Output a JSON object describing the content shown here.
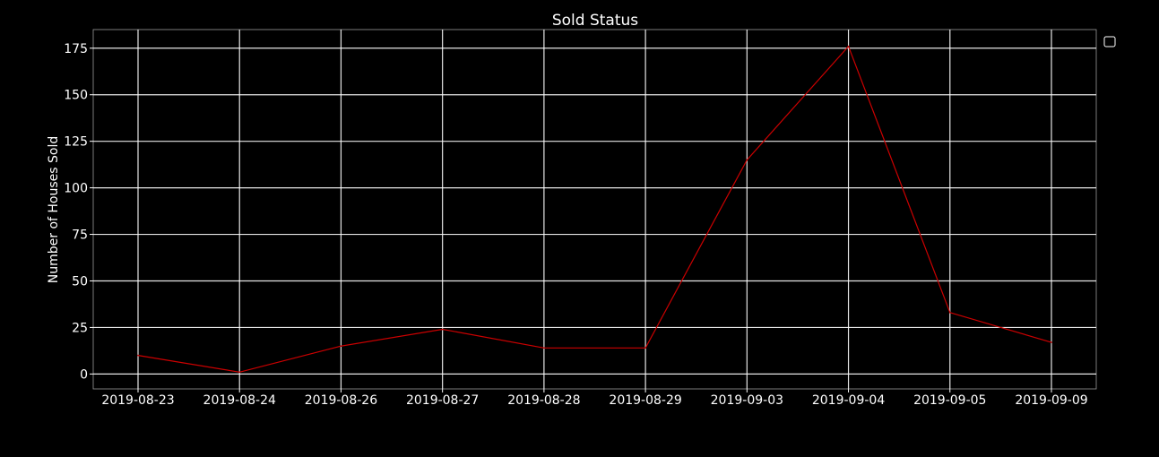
{
  "chart_data": {
    "type": "line",
    "title": "Sold Status",
    "xlabel": "",
    "ylabel": "Number of Houses Sold",
    "categories": [
      "2019-08-23",
      "2019-08-24",
      "2019-08-26",
      "2019-08-27",
      "2019-08-28",
      "2019-08-29",
      "2019-09-03",
      "2019-09-04",
      "2019-09-05",
      "2019-09-09"
    ],
    "series": [
      {
        "values": [
          10,
          1,
          15,
          24,
          14,
          14,
          115,
          176,
          33,
          17
        ],
        "color": "#cc0000"
      }
    ],
    "ylim": [
      -8,
      185
    ],
    "yticks": [
      0,
      25,
      50,
      75,
      100,
      125,
      150,
      175
    ],
    "grid": true,
    "legend": "top-right, empty",
    "colors": {
      "background": "#000000",
      "text": "#ffffff",
      "grid": "#ffffff",
      "line": "#cc0000"
    }
  }
}
